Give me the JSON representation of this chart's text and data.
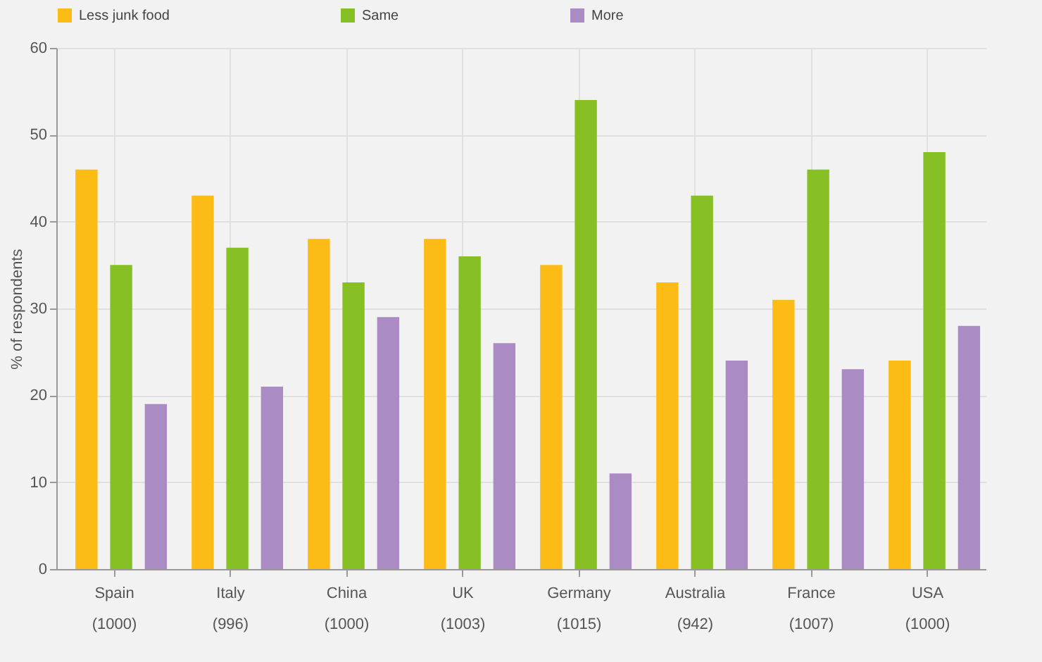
{
  "chart_data": {
    "type": "bar",
    "ylabel": "% of respondents",
    "categories": [
      "Spain\n(1000)",
      "Italy\n(996)",
      "China\n(1000)",
      "UK\n(1003)",
      "Germany\n(1015)",
      "Australia\n(942)",
      "France\n(1007)",
      "USA\n(1000)"
    ],
    "series": [
      {
        "name": "Less junk food",
        "color": "#fdbb15",
        "values": [
          46,
          43,
          38,
          38,
          35,
          33,
          31,
          24
        ]
      },
      {
        "name": "Same",
        "color": "#86c024",
        "values": [
          35,
          37,
          33,
          36,
          54,
          43,
          46,
          48
        ]
      },
      {
        "name": "More",
        "color": "#ab8bc4",
        "values": [
          19,
          21,
          29,
          26,
          11,
          24,
          23,
          28
        ]
      }
    ],
    "ylim": [
      0,
      60
    ],
    "yticks": [
      0,
      10,
      20,
      30,
      40,
      50,
      60
    ],
    "grid": true,
    "legend": "top"
  }
}
